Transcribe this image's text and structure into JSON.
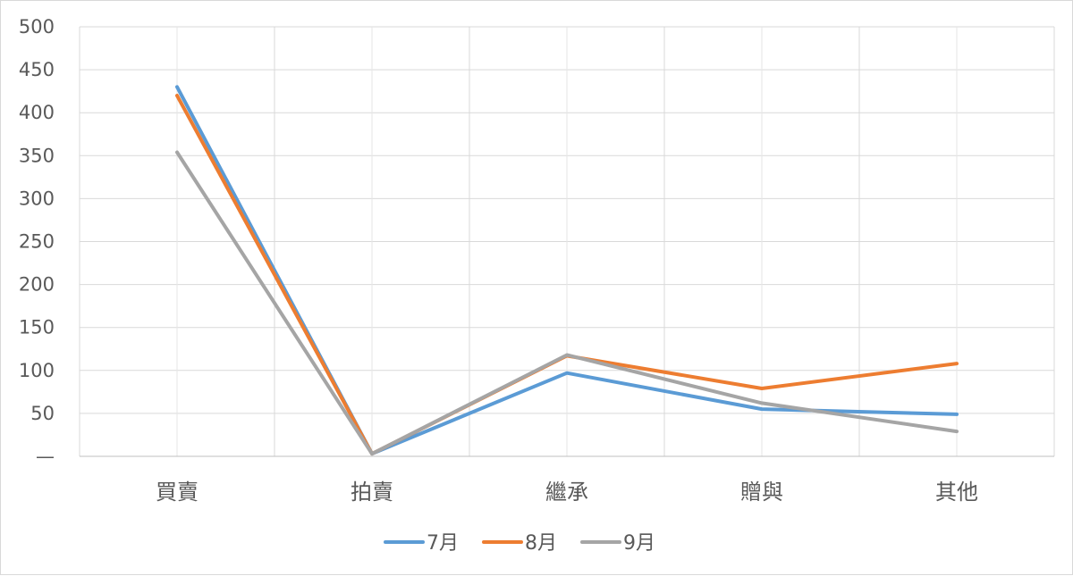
{
  "chart_data": {
    "type": "line",
    "categories": [
      "買賣",
      "拍賣",
      "繼承",
      "贈與",
      "其他"
    ],
    "series": [
      {
        "name": "7月",
        "color": "#5b9bd5",
        "values": [
          430,
          3,
          97,
          55,
          49
        ]
      },
      {
        "name": "8月",
        "color": "#ed7d31",
        "values": [
          420,
          3,
          117,
          79,
          108
        ]
      },
      {
        "name": "9月",
        "color": "#a5a5a5",
        "values": [
          354,
          3,
          118,
          62,
          29
        ]
      }
    ],
    "ylim": [
      0,
      500
    ],
    "yticks": [
      0,
      50,
      100,
      150,
      200,
      250,
      300,
      350,
      400,
      450,
      500
    ],
    "ytick_labels": [
      "—",
      "50",
      "100",
      "150",
      "200",
      "250",
      "300",
      "350",
      "400",
      "450",
      "500"
    ],
    "grid": true,
    "legend_position": "bottom",
    "title": "",
    "xlabel": "",
    "ylabel": ""
  }
}
